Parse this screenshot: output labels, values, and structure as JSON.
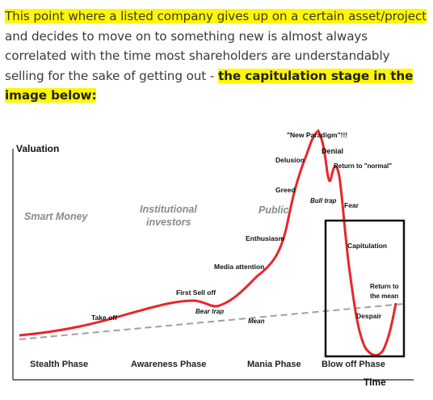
{
  "paragraph": {
    "highlight_1": "This point where a listed company gives up on a certain asset/project",
    "text_1": " and decides to move on to something new is almost always correlated with the time most shareholders are understandably selling for the sake of getting out - ",
    "highlight_2": "the capitulation stage in the image below:"
  },
  "chart": {
    "y_axis_label": "Valuation",
    "x_axis_label": "Time",
    "labels": {
      "new_paradigm": "\"New Paradigm\"!!!",
      "denial": "Denial",
      "delusion": "Delusion",
      "return_normal": "Return to \"normal\"",
      "greed": "Greed",
      "bull_trap": "Bull trap",
      "fear": "Fear",
      "enthusiasm": "Enthusiasm",
      "capitulation": "Capitulation",
      "media_attention": "Media attention",
      "return_mean_1": "Return to",
      "return_mean_2": "the mean",
      "first_sell_off": "First Sell off",
      "bear_trap": "Bear trap",
      "take_off": "Take off",
      "mean": "Mean",
      "despair": "Despair"
    },
    "groups": {
      "smart_money": "Smart Money",
      "institutional_1": "Institutional",
      "institutional_2": "investors",
      "public": "Public"
    },
    "phases": [
      "Stealth Phase",
      "Awareness Phase",
      "Mania Phase",
      "Blow off Phase"
    ],
    "colors": {
      "curve": "#e8262a",
      "mean_line": "#999999",
      "box": "#111111",
      "highlight": "#fff700"
    }
  }
}
